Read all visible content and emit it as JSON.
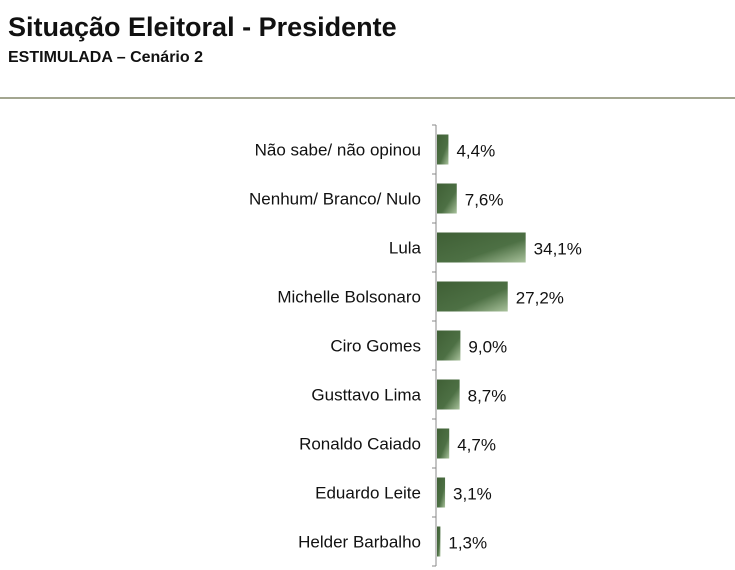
{
  "header": {
    "title": "Situação Eleitoral - Presidente",
    "subtitle": "ESTIMULADA – Cenário 2"
  },
  "chart_data": {
    "type": "bar",
    "orientation": "horizontal",
    "title": "Situação Eleitoral - Presidente",
    "subtitle": "ESTIMULADA – Cenário 2",
    "categories": [
      "Não sabe/ não opinou",
      "Nenhum/ Branco/ Nulo",
      "Lula",
      "Michelle Bolsonaro",
      "Ciro Gomes",
      "Gusttavo Lima",
      "Ronaldo Caiado",
      "Eduardo Leite",
      "Helder Barbalho"
    ],
    "values": [
      4.4,
      7.6,
      34.1,
      27.2,
      9.0,
      8.7,
      4.7,
      3.1,
      1.3
    ],
    "labels": [
      "4,4%",
      "7,6%",
      "34,1%",
      "27,2%",
      "9,0%",
      "8,7%",
      "4,7%",
      "3,1%",
      "1,3%"
    ],
    "unit": "%",
    "bar_color": "#4a6b3f",
    "grid": false
  }
}
